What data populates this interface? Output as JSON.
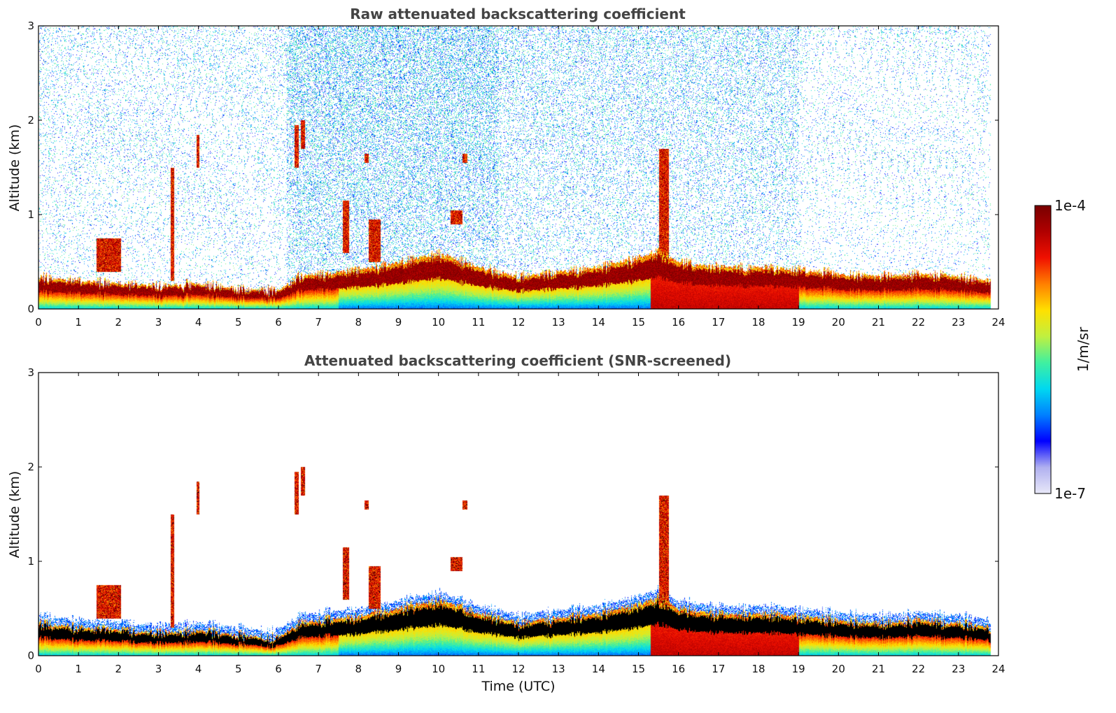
{
  "figure": {
    "colormap": [
      "#e8e8f8",
      "#b0b0f0",
      "#0000ff",
      "#0080ff",
      "#00d8f0",
      "#40f0a0",
      "#c0f040",
      "#ffe000",
      "#ff8000",
      "#f01000",
      "#b00000",
      "#780000"
    ],
    "mask_color": "#ffffff"
  },
  "chart_data": [
    {
      "type": "heatmap",
      "title": "Raw attenuated backscattering coefficient",
      "xlabel": "",
      "ylabel": "Altitude (km)",
      "xlim": [
        0,
        24
      ],
      "ylim": [
        0,
        3
      ],
      "xticks": [
        "0",
        "1",
        "2",
        "3",
        "4",
        "5",
        "6",
        "7",
        "8",
        "9",
        "10",
        "11",
        "12",
        "13",
        "14",
        "15",
        "16",
        "17",
        "18",
        "19",
        "20",
        "21",
        "22",
        "23",
        "24"
      ],
      "yticks": [
        "0",
        "1",
        "2",
        "3"
      ],
      "data_end_hour": 23.8,
      "screened": false,
      "boundary_layer_top_km": [
        [
          0,
          0.35
        ],
        [
          1,
          0.3
        ],
        [
          2,
          0.28
        ],
        [
          3,
          0.25
        ],
        [
          4,
          0.27
        ],
        [
          5,
          0.22
        ],
        [
          6,
          0.2
        ],
        [
          6.5,
          0.35
        ],
        [
          7,
          0.38
        ],
        [
          8,
          0.42
        ],
        [
          9,
          0.5
        ],
        [
          10,
          0.6
        ],
        [
          11,
          0.45
        ],
        [
          12,
          0.35
        ],
        [
          13,
          0.4
        ],
        [
          14,
          0.45
        ],
        [
          15,
          0.55
        ],
        [
          15.5,
          0.62
        ],
        [
          16,
          0.5
        ],
        [
          17,
          0.45
        ],
        [
          18,
          0.45
        ],
        [
          19,
          0.42
        ],
        [
          20,
          0.38
        ],
        [
          21,
          0.35
        ],
        [
          22,
          0.38
        ],
        [
          23,
          0.35
        ],
        [
          23.8,
          0.3
        ]
      ],
      "features": [
        {
          "kind": "cloud",
          "t0": 1.45,
          "t1": 2.05,
          "z0": 0.4,
          "z1": 0.75
        },
        {
          "kind": "cloud",
          "t0": 3.3,
          "t1": 3.38,
          "z0": 0.3,
          "z1": 1.5
        },
        {
          "kind": "cloud",
          "t0": 3.95,
          "t1": 4.02,
          "z0": 1.5,
          "z1": 1.85
        },
        {
          "kind": "cloud",
          "t0": 6.4,
          "t1": 6.5,
          "z0": 1.5,
          "z1": 1.95
        },
        {
          "kind": "cloud",
          "t0": 6.55,
          "t1": 6.65,
          "z0": 1.7,
          "z1": 2.0
        },
        {
          "kind": "cloud",
          "t0": 7.6,
          "t1": 7.75,
          "z0": 0.6,
          "z1": 1.15
        },
        {
          "kind": "cloud",
          "t0": 8.25,
          "t1": 8.55,
          "z0": 0.5,
          "z1": 0.95
        },
        {
          "kind": "cloud",
          "t0": 8.15,
          "t1": 8.25,
          "z0": 1.55,
          "z1": 1.65
        },
        {
          "kind": "cloud",
          "t0": 10.3,
          "t1": 10.6,
          "z0": 0.9,
          "z1": 1.05
        },
        {
          "kind": "cloud",
          "t0": 10.6,
          "t1": 10.72,
          "z0": 1.55,
          "z1": 1.65
        },
        {
          "kind": "cloud",
          "t0": 15.5,
          "t1": 15.75,
          "z0": 0.5,
          "z1": 1.7
        }
      ],
      "noise_regions": [
        {
          "t0": 0,
          "t1": 6.2,
          "density": 0.25
        },
        {
          "t0": 6.2,
          "t1": 11.5,
          "density": 0.75
        },
        {
          "t0": 11.5,
          "t1": 19,
          "density": 0.45
        },
        {
          "t0": 19,
          "t1": 23.8,
          "density": 0.18
        }
      ]
    },
    {
      "type": "heatmap",
      "title": "Attenuated backscattering coefficient (SNR-screened)",
      "xlabel": "Time (UTC)",
      "ylabel": "Altitude (km)",
      "xlim": [
        0,
        24
      ],
      "ylim": [
        0,
        3
      ],
      "xticks": [
        "0",
        "1",
        "2",
        "3",
        "4",
        "5",
        "6",
        "7",
        "8",
        "9",
        "10",
        "11",
        "12",
        "13",
        "14",
        "15",
        "16",
        "17",
        "18",
        "19",
        "20",
        "21",
        "22",
        "23",
        "24"
      ],
      "yticks": [
        "0",
        "1",
        "2",
        "3"
      ],
      "data_end_hour": 23.8,
      "screened": true
    }
  ],
  "colorbar": {
    "label": "1/m/sr",
    "max_label": "1e-4",
    "min_label": "1e-7",
    "scale": "log"
  }
}
